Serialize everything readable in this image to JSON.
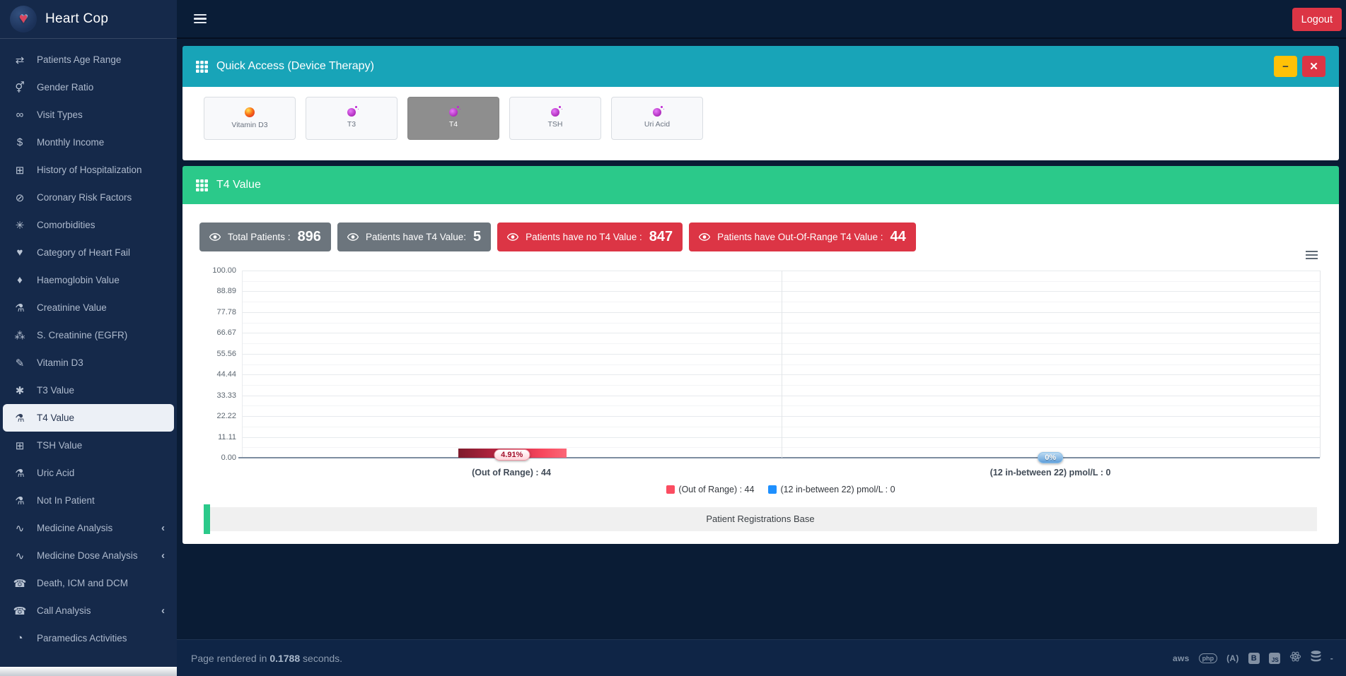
{
  "app": {
    "title": "Heart Cop",
    "logout_label": "Logout"
  },
  "icon_glyphs": {
    "exchange": "⇄",
    "transgender": "⚥",
    "glasses": "∞",
    "dollar": "$",
    "clipboard_plus": "⊞",
    "ban": "⊘",
    "virus": "✳",
    "heartbeat": "♥",
    "drop": "♦",
    "flask": "⚗",
    "sitemap": "⁂",
    "syringe": "✎",
    "asterisk": "✱",
    "chart_line": "∿",
    "phone": "☎",
    "tachometer": "◔",
    "chevron_left": "‹",
    "minimize": "−",
    "close": "✕",
    "heart": "♥"
  },
  "sidebar": {
    "items": [
      {
        "label": "Patients Age Range",
        "icon": "exchange"
      },
      {
        "label": "Gender Ratio",
        "icon": "transgender"
      },
      {
        "label": "Visit Types",
        "icon": "glasses"
      },
      {
        "label": "Monthly Income",
        "icon": "dollar"
      },
      {
        "label": "History of Hospitalization",
        "icon": "clipboard_plus"
      },
      {
        "label": "Coronary Risk Factors",
        "icon": "ban"
      },
      {
        "label": "Comorbidities",
        "icon": "virus"
      },
      {
        "label": "Category of Heart Fail",
        "icon": "heartbeat"
      },
      {
        "label": "Haemoglobin Value",
        "icon": "drop"
      },
      {
        "label": "Creatinine Value",
        "icon": "flask"
      },
      {
        "label": "S. Creatinine (EGFR)",
        "icon": "sitemap"
      },
      {
        "label": "Vitamin D3",
        "icon": "syringe"
      },
      {
        "label": "T3 Value",
        "icon": "asterisk"
      },
      {
        "label": "T4 Value",
        "icon": "flask",
        "active": true
      },
      {
        "label": "TSH Value",
        "icon": "clipboard_plus"
      },
      {
        "label": "Uric Acid",
        "icon": "flask"
      },
      {
        "label": "Not In Patient",
        "icon": "flask"
      },
      {
        "label": "Medicine Analysis",
        "icon": "chart_line",
        "expandable": true
      },
      {
        "label": "Medicine Dose Analysis",
        "icon": "chart_line",
        "expandable": true
      },
      {
        "label": "Death, ICM and DCM",
        "icon": "phone"
      },
      {
        "label": "Call Analysis",
        "icon": "phone",
        "expandable": true
      },
      {
        "label": "Paramedics Activities",
        "icon": "tachometer"
      }
    ]
  },
  "quick_access": {
    "title": "Quick Access (Device Therapy)",
    "items": [
      {
        "label": "Vitamin D3",
        "icon": "vitamin-pill-icon",
        "selected": false
      },
      {
        "label": "T3",
        "icon": "microbe-icon",
        "selected": false
      },
      {
        "label": "T4",
        "icon": "microbe-icon",
        "selected": true
      },
      {
        "label": "TSH",
        "icon": "microbe-icon",
        "selected": false
      },
      {
        "label": "Uri Acid",
        "icon": "microbe-icon",
        "selected": false
      }
    ]
  },
  "t4_panel": {
    "title": "T4 Value",
    "badges": [
      {
        "label": "Total Patients :",
        "value": "896",
        "color": "gray"
      },
      {
        "label": "Patients have T4 Value:",
        "value": "5",
        "color": "gray"
      },
      {
        "label": "Patients have no T4 Value :",
        "value": "847",
        "color": "red"
      },
      {
        "label": "Patients have Out-Of-Range T4 Value :",
        "value": "44",
        "color": "red"
      }
    ]
  },
  "chart_data": {
    "type": "bar",
    "categories": [
      "(Out of Range) : 44",
      "(12 in-between 22) pmol/L : 0"
    ],
    "values": [
      4.91,
      0
    ],
    "bar_labels": [
      "4.91%",
      "0%"
    ],
    "ylim": [
      0,
      100
    ],
    "yticks": [
      "100.00",
      "88.89",
      "77.78",
      "66.67",
      "55.56",
      "44.44",
      "33.33",
      "22.22",
      "11.11",
      "0.00"
    ],
    "grid": true,
    "legend_position": "bottom-center",
    "legend": [
      {
        "label": "(Out of Range) : 44",
        "color": "#fb4d61"
      },
      {
        "label": "(12 in-between 22) pmol/L : 0",
        "color": "#1e90ff"
      }
    ],
    "footer_label": "Patient Registrations Base",
    "bar_gradient": [
      "#7e1b2d",
      "#f8485e"
    ]
  },
  "footer": {
    "prefix": "Page rendered in",
    "time": "0.1788",
    "suffix": "seconds.",
    "tech_icons": [
      {
        "name": "aws-icon",
        "text": "aws",
        "style": "text"
      },
      {
        "name": "php-icon",
        "text": "php",
        "style": "oval"
      },
      {
        "name": "angular-icon",
        "text": "(A)",
        "style": "text"
      },
      {
        "name": "bootstrap-icon",
        "text": "B",
        "style": "square"
      },
      {
        "name": "js-icon",
        "text": "JS",
        "style": "square-js"
      },
      {
        "name": "react-icon",
        "style": "react"
      },
      {
        "name": "database-icon",
        "style": "database"
      },
      {
        "name": "dash-icon",
        "text": "-",
        "style": "text"
      }
    ]
  },
  "colors": {
    "teal_header": "#18a4b8",
    "green_header": "#2bc98a",
    "danger": "#dc3545",
    "warning": "#ffc107",
    "badge_gray": "#6c757d",
    "sidebar_bg": "#15294a",
    "topbar_bg": "#0a1d37"
  }
}
